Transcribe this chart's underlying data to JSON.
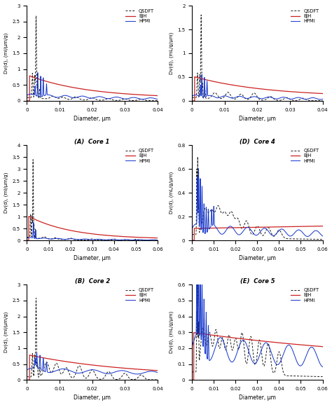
{
  "subplots": [
    {
      "label": "(A)  Core 1",
      "ylabel": "Dv(d), (ml/μm/g)",
      "xlabel": "Diameter, μm",
      "xlim": [
        0,
        0.04
      ],
      "ylim": [
        0,
        3
      ],
      "yticks": [
        0,
        0.5,
        1.0,
        1.5,
        2.0,
        2.5,
        3.0
      ],
      "xticks": [
        0,
        0.01,
        0.02,
        0.03,
        0.04
      ]
    },
    {
      "label": "(D)  Core 4",
      "ylabel": "Dv(d), (mL/g/μm)",
      "xlabel": "Diameter, μm",
      "xlim": [
        0,
        0.04
      ],
      "ylim": [
        0,
        2
      ],
      "yticks": [
        0,
        0.5,
        1.0,
        1.5,
        2.0
      ],
      "xticks": [
        0,
        0.01,
        0.02,
        0.03,
        0.04
      ]
    },
    {
      "label": "(B)  Core 2",
      "ylabel": "Dv(d), (ml/μm/g)",
      "xlabel": "Diameter, μm",
      "xlim": [
        0,
        0.06
      ],
      "ylim": [
        0,
        4
      ],
      "yticks": [
        0,
        0.5,
        1.0,
        1.5,
        2.0,
        2.5,
        3.0,
        3.5,
        4.0
      ],
      "xticks": [
        0,
        0.01,
        0.02,
        0.03,
        0.04,
        0.05,
        0.06
      ]
    },
    {
      "label": "(E)  Core 5",
      "ylabel": "Dv(d), (mL/g/μm)",
      "xlabel": "Diameter, μm",
      "xlim": [
        0,
        0.06
      ],
      "ylim": [
        0,
        0.8
      ],
      "yticks": [
        0,
        0.2,
        0.4,
        0.6,
        0.8
      ],
      "xticks": [
        0,
        0.01,
        0.02,
        0.03,
        0.04,
        0.05,
        0.06
      ]
    },
    {
      "label": "(C)  Core 3",
      "ylabel": "Dv(d), (ml/μm/g)",
      "xlabel": "Diameter, μm",
      "xlim": [
        0,
        0.04
      ],
      "ylim": [
        0,
        3
      ],
      "yticks": [
        0,
        0.5,
        1.0,
        1.5,
        2.0,
        2.5,
        3.0
      ],
      "xticks": [
        0,
        0.01,
        0.02,
        0.03,
        0.04
      ]
    },
    {
      "label": "(F)  Core 6",
      "ylabel": "Dv(d), (mL/g/μm)",
      "xlabel": "Diameter, μm",
      "xlim": [
        0,
        0.06
      ],
      "ylim": [
        0,
        0.6
      ],
      "yticks": [
        0,
        0.1,
        0.2,
        0.3,
        0.4,
        0.5,
        0.6
      ],
      "xticks": [
        0,
        0.01,
        0.02,
        0.03,
        0.04,
        0.05,
        0.06
      ]
    }
  ],
  "colors": {
    "QSDFT": "#1a1a1a",
    "BJH": "#cc2222",
    "HPMI": "#1133cc"
  }
}
